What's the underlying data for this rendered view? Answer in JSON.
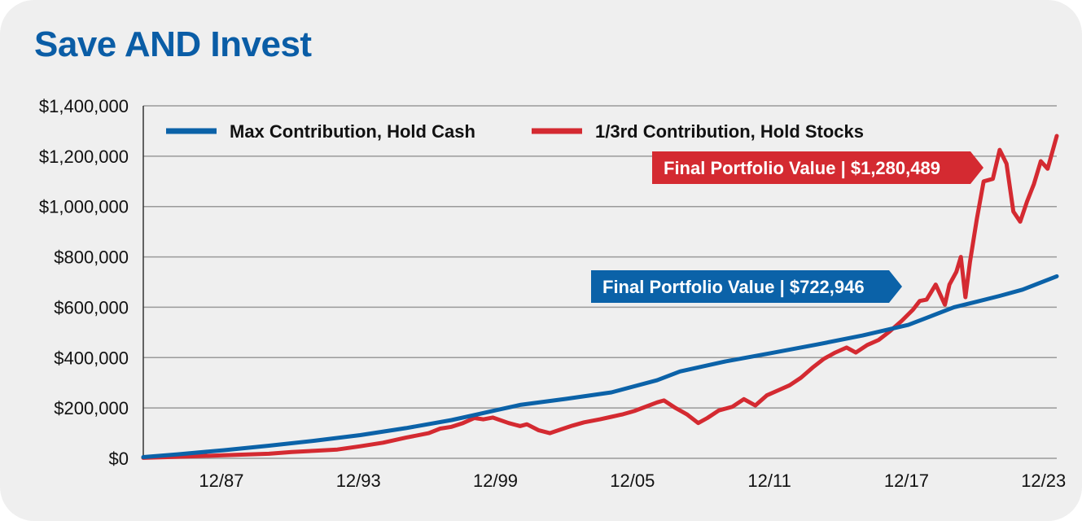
{
  "title": "Save AND Invest",
  "colors": {
    "cash": "#0b62a8",
    "stocks": "#d42a31",
    "grid": "#9a9a9a"
  },
  "chart_data": {
    "type": "line",
    "title": "Save AND Invest",
    "xlabel": "",
    "ylabel": "",
    "ylim": [
      0,
      1400000
    ],
    "xlim": [
      1984.5,
      2024.5
    ],
    "y_ticks": [
      0,
      200000,
      400000,
      600000,
      800000,
      1000000,
      1200000,
      1400000
    ],
    "y_tick_labels": [
      "$0",
      "$200,000",
      "$400,000",
      "$600,000",
      "$800,000",
      "$1,000,000",
      "$1,200,000",
      "$1,400,000"
    ],
    "x_ticks": [
      1987.92,
      1993.92,
      1999.92,
      2005.92,
      2011.92,
      2017.92,
      2023.92
    ],
    "x_tick_labels": [
      "12/87",
      "12/93",
      "12/99",
      "12/05",
      "12/11",
      "12/17",
      "12/23"
    ],
    "legend_position": "top",
    "series": [
      {
        "name": "Max Contribution, Hold Cash",
        "x": [
          1984.5,
          1986,
          1988,
          1990,
          1992,
          1994,
          1996,
          1998,
          2000,
          2001,
          2003,
          2005,
          2007,
          2008,
          2010,
          2012,
          2014,
          2016,
          2018,
          2019,
          2020,
          2021,
          2022,
          2023,
          2024.5
        ],
        "values": [
          5000,
          16000,
          32000,
          50000,
          70000,
          92000,
          120000,
          152000,
          192000,
          212000,
          236000,
          262000,
          310000,
          345000,
          385000,
          418000,
          452000,
          488000,
          530000,
          565000,
          600000,
          622000,
          645000,
          670000,
          723000
        ]
      },
      {
        "name": "1/3rd Contribution, Hold Stocks",
        "x": [
          1984.5,
          1986,
          1988,
          1990,
          1991,
          1992,
          1993,
          1994,
          1995,
          1996,
          1997,
          1997.5,
          1998,
          1998.5,
          1999,
          1999.4,
          1999.8,
          2000.5,
          2001,
          2001.3,
          2001.8,
          2002.3,
          2002.8,
          2003.3,
          2003.8,
          2004.5,
          2005,
          2005.5,
          2006,
          2006.5,
          2007,
          2007.3,
          2007.8,
          2008.3,
          2008.8,
          2009.2,
          2009.7,
          2010.3,
          2010.8,
          2011.3,
          2011.8,
          2012.3,
          2012.8,
          2013.3,
          2013.8,
          2014.3,
          2014.8,
          2015.3,
          2015.7,
          2016.2,
          2016.7,
          2017.2,
          2017.7,
          2018.2,
          2018.5,
          2018.8,
          2019.2,
          2019.6,
          2019.8,
          2020.1,
          2020.3,
          2020.5,
          2020.7,
          2021,
          2021.3,
          2021.7,
          2022,
          2022.3,
          2022.6,
          2022.9,
          2023.2,
          2023.5,
          2023.8,
          2024.1,
          2024.5
        ],
        "values": [
          2000,
          6000,
          12000,
          18000,
          25000,
          30000,
          35000,
          48000,
          62000,
          82000,
          100000,
          118000,
          125000,
          140000,
          160000,
          155000,
          162000,
          140000,
          128000,
          135000,
          112000,
          100000,
          115000,
          130000,
          143000,
          155000,
          165000,
          175000,
          188000,
          205000,
          222000,
          230000,
          200000,
          175000,
          140000,
          160000,
          190000,
          205000,
          235000,
          210000,
          250000,
          270000,
          290000,
          320000,
          360000,
          395000,
          420000,
          440000,
          420000,
          450000,
          470000,
          505000,
          545000,
          590000,
          625000,
          630000,
          690000,
          610000,
          690000,
          740000,
          800000,
          640000,
          780000,
          950000,
          1100000,
          1110000,
          1225000,
          1170000,
          980000,
          940000,
          1020000,
          1090000,
          1180000,
          1150000,
          1280489
        ]
      }
    ],
    "annotations": [
      {
        "label": "Final Portfolio Value | $1,280,489",
        "series": "1/3rd Contribution, Hold Stocks",
        "value": 1280489
      },
      {
        "label": "Final Portfolio Value | $722,946",
        "series": "Max Contribution, Hold Cash",
        "value": 722946
      }
    ]
  }
}
